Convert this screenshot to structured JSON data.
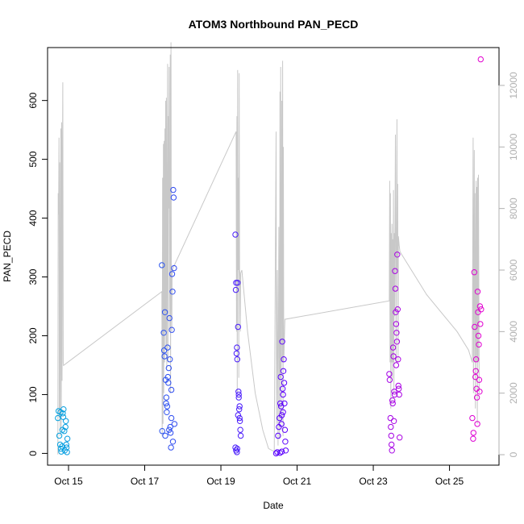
{
  "chart_data": {
    "type": "scatter",
    "title": "ATOM3 Northbound PAN_PECD",
    "xlabel": "Date",
    "ylabel": "PAN_PECD",
    "x_ticks": [
      "Oct 15",
      "Oct 17",
      "Oct 19",
      "Oct 21",
      "Oct 23",
      "Oct 25"
    ],
    "x_tick_days": [
      15,
      17,
      19,
      21,
      23,
      25
    ],
    "xlim": [
      14.45,
      26.3
    ],
    "ylim": [
      -20,
      690
    ],
    "y_ticks": [
      0,
      100,
      200,
      300,
      400,
      500,
      600
    ],
    "y2_ticks": [
      0,
      2000,
      4000,
      6000,
      8000,
      10000,
      12000
    ],
    "y2lim": [
      -340,
      13230
    ],
    "grid": false,
    "legend": "none",
    "colors": {
      "point_start": "#00aadd",
      "point_mid": "#5500ff",
      "point_end": "#ee00cc",
      "line": "#c8c8c8",
      "axis": "#000000",
      "right_axis": "#b0b0b0"
    },
    "points": [
      {
        "x": 14.72,
        "y": 60
      },
      {
        "x": 14.74,
        "y": 72
      },
      {
        "x": 14.76,
        "y": 30
      },
      {
        "x": 14.78,
        "y": 15
      },
      {
        "x": 14.8,
        "y": 8
      },
      {
        "x": 14.81,
        "y": 3
      },
      {
        "x": 14.83,
        "y": 12
      },
      {
        "x": 14.85,
        "y": 68
      },
      {
        "x": 14.86,
        "y": 62
      },
      {
        "x": 14.87,
        "y": 75
      },
      {
        "x": 14.89,
        "y": 38
      },
      {
        "x": 14.9,
        "y": 5
      },
      {
        "x": 14.92,
        "y": 45
      },
      {
        "x": 14.93,
        "y": 55
      },
      {
        "x": 14.94,
        "y": 15
      },
      {
        "x": 14.95,
        "y": 10
      },
      {
        "x": 14.96,
        "y": 2
      },
      {
        "x": 14.97,
        "y": 25
      },
      {
        "x": 14.84,
        "y": 40
      },
      {
        "x": 14.79,
        "y": 70
      },
      {
        "x": 17.45,
        "y": 320
      },
      {
        "x": 17.46,
        "y": 38
      },
      {
        "x": 17.5,
        "y": 205
      },
      {
        "x": 17.51,
        "y": 175
      },
      {
        "x": 17.52,
        "y": 165
      },
      {
        "x": 17.53,
        "y": 240
      },
      {
        "x": 17.55,
        "y": 125
      },
      {
        "x": 17.56,
        "y": 85
      },
      {
        "x": 17.57,
        "y": 95
      },
      {
        "x": 17.58,
        "y": 70
      },
      {
        "x": 17.6,
        "y": 180
      },
      {
        "x": 17.61,
        "y": 130
      },
      {
        "x": 17.62,
        "y": 120
      },
      {
        "x": 17.63,
        "y": 145
      },
      {
        "x": 17.65,
        "y": 230
      },
      {
        "x": 17.66,
        "y": 160
      },
      {
        "x": 17.67,
        "y": 45
      },
      {
        "x": 17.68,
        "y": 35
      },
      {
        "x": 17.69,
        "y": 10
      },
      {
        "x": 17.7,
        "y": 60
      },
      {
        "x": 17.71,
        "y": 210
      },
      {
        "x": 17.72,
        "y": 305
      },
      {
        "x": 17.73,
        "y": 275
      },
      {
        "x": 17.74,
        "y": 20
      },
      {
        "x": 17.75,
        "y": 448
      },
      {
        "x": 17.76,
        "y": 435
      },
      {
        "x": 17.77,
        "y": 315
      },
      {
        "x": 17.59,
        "y": 80
      },
      {
        "x": 17.64,
        "y": 40
      },
      {
        "x": 17.54,
        "y": 30
      },
      {
        "x": 17.78,
        "y": 50
      },
      {
        "x": 17.7,
        "y": 108
      },
      {
        "x": 19.38,
        "y": 372
      },
      {
        "x": 19.39,
        "y": 278
      },
      {
        "x": 19.4,
        "y": 290
      },
      {
        "x": 19.41,
        "y": 170
      },
      {
        "x": 19.42,
        "y": 180
      },
      {
        "x": 19.43,
        "y": 160
      },
      {
        "x": 19.44,
        "y": 290
      },
      {
        "x": 19.45,
        "y": 215
      },
      {
        "x": 19.46,
        "y": 105
      },
      {
        "x": 19.47,
        "y": 95
      },
      {
        "x": 19.48,
        "y": 75
      },
      {
        "x": 19.49,
        "y": 60
      },
      {
        "x": 19.5,
        "y": 55
      },
      {
        "x": 19.51,
        "y": 40
      },
      {
        "x": 19.52,
        "y": 30
      },
      {
        "x": 19.38,
        "y": 10
      },
      {
        "x": 19.4,
        "y": 5
      },
      {
        "x": 19.42,
        "y": 2
      },
      {
        "x": 19.45,
        "y": 65
      },
      {
        "x": 19.47,
        "y": 100
      },
      {
        "x": 19.49,
        "y": 80
      },
      {
        "x": 19.43,
        "y": 8
      },
      {
        "x": 20.45,
        "y": 0
      },
      {
        "x": 20.48,
        "y": 2
      },
      {
        "x": 20.5,
        "y": 30
      },
      {
        "x": 20.52,
        "y": 45
      },
      {
        "x": 20.54,
        "y": 60
      },
      {
        "x": 20.56,
        "y": 85
      },
      {
        "x": 20.57,
        "y": 130
      },
      {
        "x": 20.58,
        "y": 80
      },
      {
        "x": 20.6,
        "y": 65
      },
      {
        "x": 20.61,
        "y": 190
      },
      {
        "x": 20.62,
        "y": 110
      },
      {
        "x": 20.63,
        "y": 100
      },
      {
        "x": 20.64,
        "y": 140
      },
      {
        "x": 20.65,
        "y": 160
      },
      {
        "x": 20.66,
        "y": 120
      },
      {
        "x": 20.67,
        "y": 85
      },
      {
        "x": 20.68,
        "y": 40
      },
      {
        "x": 20.69,
        "y": 20
      },
      {
        "x": 20.7,
        "y": 5
      },
      {
        "x": 20.6,
        "y": 3
      },
      {
        "x": 20.55,
        "y": 1
      },
      {
        "x": 20.59,
        "y": 50
      },
      {
        "x": 20.63,
        "y": 70
      },
      {
        "x": 23.42,
        "y": 135
      },
      {
        "x": 23.43,
        "y": 125
      },
      {
        "x": 23.45,
        "y": 60
      },
      {
        "x": 23.46,
        "y": 45
      },
      {
        "x": 23.47,
        "y": 30
      },
      {
        "x": 23.48,
        "y": 15
      },
      {
        "x": 23.5,
        "y": 90
      },
      {
        "x": 23.51,
        "y": 85
      },
      {
        "x": 23.52,
        "y": 180
      },
      {
        "x": 23.53,
        "y": 165
      },
      {
        "x": 23.55,
        "y": 105
      },
      {
        "x": 23.56,
        "y": 100
      },
      {
        "x": 23.57,
        "y": 310
      },
      {
        "x": 23.58,
        "y": 280
      },
      {
        "x": 23.59,
        "y": 240
      },
      {
        "x": 23.6,
        "y": 220
      },
      {
        "x": 23.61,
        "y": 205
      },
      {
        "x": 23.62,
        "y": 190
      },
      {
        "x": 23.63,
        "y": 338
      },
      {
        "x": 23.64,
        "y": 245
      },
      {
        "x": 23.65,
        "y": 160
      },
      {
        "x": 23.66,
        "y": 115
      },
      {
        "x": 23.67,
        "y": 110
      },
      {
        "x": 23.68,
        "y": 100
      },
      {
        "x": 23.69,
        "y": 27
      },
      {
        "x": 23.54,
        "y": 55
      },
      {
        "x": 23.49,
        "y": 5
      },
      {
        "x": 23.6,
        "y": 150
      },
      {
        "x": 25.6,
        "y": 60
      },
      {
        "x": 25.62,
        "y": 25
      },
      {
        "x": 25.63,
        "y": 35
      },
      {
        "x": 25.65,
        "y": 308
      },
      {
        "x": 25.66,
        "y": 215
      },
      {
        "x": 25.68,
        "y": 130
      },
      {
        "x": 25.7,
        "y": 160
      },
      {
        "x": 25.71,
        "y": 110
      },
      {
        "x": 25.72,
        "y": 95
      },
      {
        "x": 25.73,
        "y": 50
      },
      {
        "x": 25.74,
        "y": 275
      },
      {
        "x": 25.75,
        "y": 240
      },
      {
        "x": 25.76,
        "y": 200
      },
      {
        "x": 25.77,
        "y": 185
      },
      {
        "x": 25.78,
        "y": 125
      },
      {
        "x": 25.8,
        "y": 250
      },
      {
        "x": 25.81,
        "y": 220
      },
      {
        "x": 25.82,
        "y": 670
      },
      {
        "x": 25.83,
        "y": 245
      },
      {
        "x": 25.69,
        "y": 140
      },
      {
        "x": 25.79,
        "y": 105
      }
    ],
    "line_series": [
      [
        14.72,
        5
      ],
      [
        14.73,
        8500
      ],
      [
        14.74,
        7800
      ],
      [
        14.75,
        10300
      ],
      [
        14.76,
        1200
      ],
      [
        14.77,
        9500
      ],
      [
        14.78,
        600
      ],
      [
        14.79,
        5800
      ],
      [
        14.8,
        10600
      ],
      [
        14.81,
        800
      ],
      [
        14.82,
        10800
      ],
      [
        14.83,
        2400
      ],
      [
        14.84,
        9000
      ],
      [
        14.85,
        12100
      ],
      [
        14.86,
        3000
      ],
      [
        14.87,
        2900
      ],
      [
        17.45,
        5300
      ],
      [
        17.46,
        600
      ],
      [
        17.47,
        9000
      ],
      [
        17.48,
        1000
      ],
      [
        17.49,
        10100
      ],
      [
        17.5,
        2000
      ],
      [
        17.51,
        10200
      ],
      [
        17.52,
        3000
      ],
      [
        17.53,
        10600
      ],
      [
        17.54,
        4000
      ],
      [
        17.55,
        11500
      ],
      [
        17.56,
        3500
      ],
      [
        17.57,
        11600
      ],
      [
        17.58,
        2800
      ],
      [
        17.6,
        12700
      ],
      [
        17.61,
        3000
      ],
      [
        17.62,
        11000
      ],
      [
        17.63,
        8000
      ],
      [
        17.64,
        12600
      ],
      [
        17.65,
        4000
      ],
      [
        17.66,
        6000
      ],
      [
        17.67,
        13000
      ],
      [
        17.68,
        2000
      ],
      [
        17.69,
        13400
      ],
      [
        17.7,
        5000
      ],
      [
        17.71,
        4000
      ],
      [
        17.72,
        6000
      ],
      [
        19.4,
        10500
      ],
      [
        19.41,
        4000
      ],
      [
        19.42,
        11000
      ],
      [
        19.43,
        2000
      ],
      [
        19.44,
        12500
      ],
      [
        19.45,
        6000
      ],
      [
        19.46,
        9000
      ],
      [
        19.47,
        2500
      ],
      [
        19.48,
        12400
      ],
      [
        19.49,
        6000
      ],
      [
        19.5,
        5800
      ],
      [
        19.51,
        4000
      ],
      [
        19.52,
        5900
      ],
      [
        19.55,
        6000
      ],
      [
        19.7,
        4000
      ],
      [
        19.9,
        2000
      ],
      [
        20.1,
        800
      ],
      [
        20.25,
        200
      ],
      [
        20.4,
        100
      ],
      [
        20.45,
        10500
      ],
      [
        20.46,
        1000
      ],
      [
        20.48,
        6000
      ],
      [
        20.5,
        300
      ],
      [
        20.52,
        7400
      ],
      [
        20.54,
        500
      ],
      [
        20.55,
        11800
      ],
      [
        20.56,
        2500
      ],
      [
        20.57,
        12600
      ],
      [
        20.58,
        1000
      ],
      [
        20.6,
        11500
      ],
      [
        20.61,
        3000
      ],
      [
        20.62,
        12800
      ],
      [
        20.63,
        600
      ],
      [
        20.64,
        10000
      ],
      [
        20.65,
        3000
      ],
      [
        20.68,
        4400
      ],
      [
        23.42,
        5000
      ],
      [
        23.43,
        8900
      ],
      [
        23.44,
        3000
      ],
      [
        23.45,
        8500
      ],
      [
        23.46,
        1500
      ],
      [
        23.47,
        7200
      ],
      [
        23.48,
        3000
      ],
      [
        23.49,
        7500
      ],
      [
        23.5,
        2500
      ],
      [
        23.51,
        7000
      ],
      [
        23.52,
        3000
      ],
      [
        23.53,
        8600
      ],
      [
        23.54,
        2000
      ],
      [
        23.55,
        7200
      ],
      [
        23.56,
        4500
      ],
      [
        23.58,
        10400
      ],
      [
        23.6,
        3000
      ],
      [
        23.62,
        10900
      ],
      [
        23.63,
        6000
      ],
      [
        23.64,
        8800
      ],
      [
        23.65,
        3000
      ],
      [
        23.66,
        7100
      ],
      [
        23.68,
        6800
      ],
      [
        23.7,
        6600
      ],
      [
        24.0,
        6000
      ],
      [
        24.4,
        5200
      ],
      [
        24.8,
        4600
      ],
      [
        25.2,
        4000
      ],
      [
        25.5,
        3400
      ],
      [
        25.6,
        3000
      ],
      [
        25.62,
        10300
      ],
      [
        25.63,
        2000
      ],
      [
        25.65,
        9900
      ],
      [
        25.66,
        3000
      ],
      [
        25.67,
        8500
      ],
      [
        25.68,
        1500
      ],
      [
        25.7,
        8900
      ],
      [
        25.71,
        3000
      ],
      [
        25.72,
        8700
      ],
      [
        25.73,
        1000
      ],
      [
        25.74,
        9000
      ],
      [
        25.75,
        3000
      ],
      [
        25.76,
        9100
      ],
      [
        25.78,
        2000
      ]
    ]
  }
}
